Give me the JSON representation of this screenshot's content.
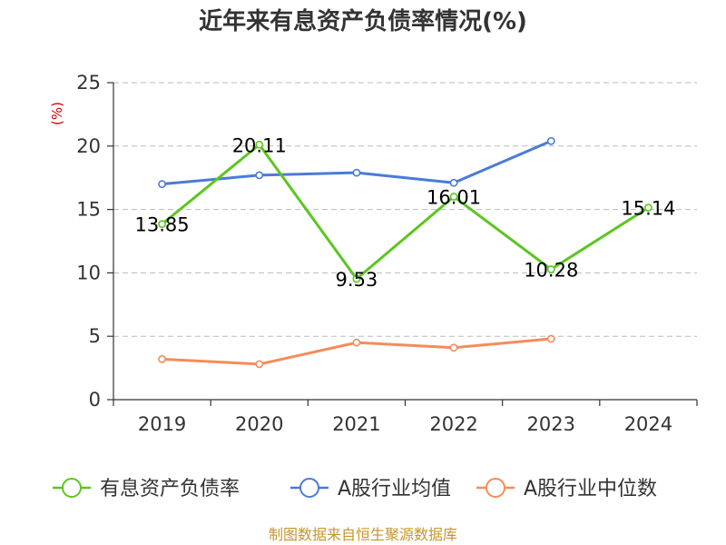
{
  "chart_data": {
    "type": "line",
    "title": "近年来有息资产负债率情况(%)",
    "ylabel": "(%)",
    "xlabel": "",
    "categories": [
      "2019",
      "2020",
      "2021",
      "2022",
      "2023",
      "2024"
    ],
    "ylim": [
      0,
      25
    ],
    "yticks": [
      0,
      5,
      10,
      15,
      20,
      25
    ],
    "grid": "horizontal-dashed",
    "legend_position": "bottom",
    "series": [
      {
        "name": "有息资产负债率",
        "color": "#5cc61f",
        "values": [
          13.85,
          20.11,
          9.53,
          16.01,
          10.28,
          15.14
        ],
        "labels": [
          "13.85",
          "20.11",
          "9.53",
          "16.01",
          "10.28",
          "15.14"
        ]
      },
      {
        "name": "A股行业均值",
        "color": "#4a7bd6",
        "values": [
          17.0,
          17.7,
          17.9,
          17.1,
          20.4,
          null
        ]
      },
      {
        "name": "A股行业中位数",
        "color": "#f58c5a",
        "values": [
          3.2,
          2.8,
          4.5,
          4.1,
          4.8,
          null
        ]
      }
    ],
    "source": "制图数据来自恒生聚源数据库"
  }
}
